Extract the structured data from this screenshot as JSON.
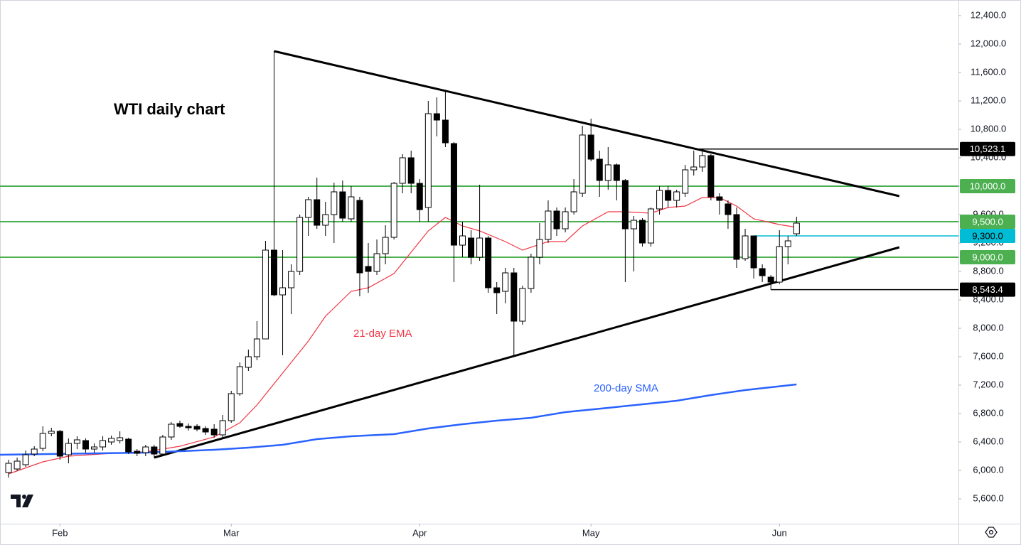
{
  "chart_data": {
    "type": "candlestick",
    "title": "WTI daily chart",
    "xlim": [
      -1,
      110.9
    ],
    "ylim": [
      5250,
      12620
    ],
    "xticks": [
      {
        "value": 6,
        "label": "Feb"
      },
      {
        "value": 26,
        "label": "Mar"
      },
      {
        "value": 48,
        "label": "Apr"
      },
      {
        "value": 68,
        "label": "May"
      },
      {
        "value": 90,
        "label": "Jun"
      }
    ],
    "yticks": [
      {
        "value": 5600,
        "label": "5,600.0"
      },
      {
        "value": 6000,
        "label": "6,000.0"
      },
      {
        "value": 6400,
        "label": "6,400.0"
      },
      {
        "value": 6800,
        "label": "6,800.0"
      },
      {
        "value": 7200,
        "label": "7,200.0"
      },
      {
        "value": 7600,
        "label": "7,600.0"
      },
      {
        "value": 8000,
        "label": "8,000.0"
      },
      {
        "value": 8400,
        "label": "8,400.0"
      },
      {
        "value": 8800,
        "label": "8,800.0"
      },
      {
        "value": 9200,
        "label": "9,200.0"
      },
      {
        "value": 9600,
        "label": "9,600.0"
      },
      {
        "value": 10000,
        "label": "10,000.0"
      },
      {
        "value": 10400,
        "label": "10,400.0"
      },
      {
        "value": 10800,
        "label": "10,800.0"
      },
      {
        "value": 11200,
        "label": "11,200.0"
      },
      {
        "value": 11600,
        "label": "11,600.0"
      },
      {
        "value": 12000,
        "label": "12,000.0"
      },
      {
        "value": 12400,
        "label": "12,400.0"
      }
    ],
    "grid": false,
    "up_color": "#ffffff",
    "down_color": "#000000",
    "ohlc": {
      "open": [
        5970,
        6020,
        6080,
        6230,
        6310,
        6520,
        6550,
        6220,
        6380,
        6420,
        6300,
        6330,
        6400,
        6420,
        6440,
        6270,
        6250,
        6330,
        6230,
        6470,
        6660,
        6620,
        6620,
        6590,
        6580,
        6500,
        6700,
        7080,
        7450,
        7600,
        7850,
        9100,
        8470,
        8570,
        8800,
        9560,
        9810,
        9450,
        9600,
        9920,
        9540,
        9800,
        8870,
        8800,
        9050,
        9280,
        10040,
        10400,
        10040,
        9700,
        11020,
        10930,
        10600,
        9170,
        9270,
        9000,
        9270,
        8570,
        8520,
        8780,
        8100,
        8560,
        9000,
        9250,
        9650,
        9400,
        9640,
        9900,
        10720,
        10380,
        10080,
        10300,
        10080,
        9400,
        9520,
        9200,
        9680,
        9940,
        9800,
        9900,
        10230,
        10270,
        10430,
        9850,
        9750,
        9600,
        8980,
        9300,
        8840,
        8720,
        8650,
        9150,
        9330
      ],
      "high": [
        6150,
        6180,
        6280,
        6340,
        6620,
        6600,
        6570,
        6450,
        6480,
        6450,
        6380,
        6480,
        6490,
        6550,
        6460,
        6300,
        6360,
        6360,
        6500,
        6680,
        6700,
        6660,
        6650,
        6620,
        6650,
        6780,
        7120,
        7520,
        7700,
        8100,
        9230,
        11900,
        9100,
        8900,
        9600,
        9850,
        10120,
        9780,
        10050,
        10080,
        10000,
        9850,
        9200,
        9250,
        9450,
        10060,
        10450,
        10500,
        10100,
        11200,
        11250,
        11350,
        10620,
        9500,
        9380,
        10020,
        9300,
        8650,
        8850,
        8850,
        8600,
        9050,
        9480,
        9800,
        9700,
        9700,
        10100,
        10850,
        10950,
        10500,
        10550,
        10320,
        10100,
        9580,
        9550,
        9700,
        10000,
        10000,
        9950,
        10300,
        10500,
        10500,
        10450,
        9900,
        9800,
        9700,
        9400,
        9300,
        8900,
        8750,
        9380,
        9300,
        9570
      ],
      "low": [
        5900,
        5990,
        6050,
        6200,
        6270,
        6480,
        6150,
        6100,
        6300,
        6250,
        6250,
        6280,
        6360,
        6380,
        6230,
        6200,
        6200,
        6180,
        6200,
        6430,
        6600,
        6560,
        6550,
        6500,
        6460,
        6440,
        6670,
        7050,
        7400,
        7550,
        7850,
        8450,
        7620,
        8200,
        8750,
        9300,
        9400,
        9300,
        9200,
        9500,
        9500,
        8450,
        8500,
        8750,
        8900,
        9250,
        9900,
        9900,
        9500,
        9500,
        10700,
        10550,
        8650,
        9000,
        8900,
        8950,
        8500,
        8200,
        8350,
        7620,
        8050,
        8500,
        8900,
        9200,
        9300,
        9350,
        9600,
        9850,
        10350,
        9850,
        9950,
        9800,
        8650,
        8800,
        9150,
        9150,
        9600,
        9700,
        9700,
        9850,
        10150,
        10200,
        9800,
        9600,
        9400,
        8850,
        8950,
        8700,
        8650,
        8543,
        8620,
        8900,
        9300
      ],
      "close": [
        6100,
        6130,
        6220,
        6300,
        6520,
        6550,
        6200,
        6380,
        6430,
        6300,
        6330,
        6420,
        6450,
        6460,
        6260,
        6240,
        6330,
        6230,
        6470,
        6650,
        6620,
        6600,
        6580,
        6540,
        6500,
        6700,
        7080,
        7460,
        7600,
        7850,
        9100,
        8470,
        8570,
        8800,
        9560,
        9810,
        9450,
        9600,
        9920,
        9550,
        9850,
        8780,
        8800,
        9050,
        9280,
        10040,
        10400,
        10040,
        9670,
        11020,
        10930,
        10610,
        9170,
        9300,
        9000,
        9270,
        8570,
        8500,
        8780,
        8100,
        8560,
        9000,
        9250,
        9650,
        9400,
        9640,
        9920,
        10720,
        10380,
        10080,
        10300,
        10080,
        9400,
        9520,
        9200,
        9680,
        9940,
        9800,
        9920,
        10230,
        10270,
        10430,
        9850,
        9800,
        9600,
        8970,
        9300,
        8850,
        8740,
        8650,
        9150,
        9230,
        9480
      ]
    },
    "series": [
      {
        "name": "21-day EMA",
        "color": "#f23645",
        "x": [
          0,
          4,
          7,
          12,
          16,
          20,
          24,
          27,
          29,
          31,
          33,
          35,
          37,
          40,
          42,
          45,
          47,
          49,
          51,
          53,
          55,
          58,
          60,
          63,
          65,
          67,
          70,
          72,
          75,
          77,
          79,
          81,
          83,
          85,
          87,
          90,
          92
        ],
        "values": [
          5950,
          6120,
          6200,
          6240,
          6260,
          6340,
          6470,
          6670,
          6920,
          7220,
          7520,
          7820,
          8170,
          8520,
          8570,
          8770,
          9070,
          9370,
          9560,
          9440,
          9370,
          9220,
          9100,
          9220,
          9220,
          9440,
          9640,
          9640,
          9620,
          9700,
          9720,
          9840,
          9840,
          9720,
          9540,
          9460,
          9420
        ]
      },
      {
        "name": "200-day SMA",
        "color": "#2962ff",
        "x": [
          -1,
          16,
          24,
          28,
          32,
          36,
          40,
          45,
          49,
          53,
          57,
          61,
          65,
          70,
          74,
          78,
          82,
          86,
          92
        ],
        "values": [
          6220,
          6250,
          6290,
          6320,
          6360,
          6440,
          6480,
          6510,
          6590,
          6650,
          6700,
          6740,
          6820,
          6880,
          6930,
          6980,
          7060,
          7130,
          7210
        ]
      }
    ],
    "trendlines": [
      {
        "x": [
          31,
          104
        ],
        "values": [
          11900,
          9860
        ]
      },
      {
        "x": [
          17,
          104
        ],
        "values": [
          6180,
          9140
        ]
      }
    ],
    "levels": [
      {
        "value": 10523.1,
        "label": "10,523.1",
        "color": "#000000",
        "text_color": "#ffffff",
        "from": 80
      },
      {
        "value": 10000,
        "label": "10,000.0",
        "color": "#4caf50",
        "text_color": "#ffffff"
      },
      {
        "value": 9500,
        "label": "9,500.0",
        "color": "#4caf50",
        "text_color": "#ffffff"
      },
      {
        "value": 9300,
        "label": "9,300.0",
        "color": "#00bcd4",
        "text_color": "#000000",
        "from": 87
      },
      {
        "value": 9000,
        "label": "9,000.0",
        "color": "#4caf50",
        "text_color": "#ffffff"
      },
      {
        "value": 8543.4,
        "label": "8,543.4",
        "color": "#000000",
        "text_color": "#ffffff",
        "from": 89
      }
    ]
  }
}
